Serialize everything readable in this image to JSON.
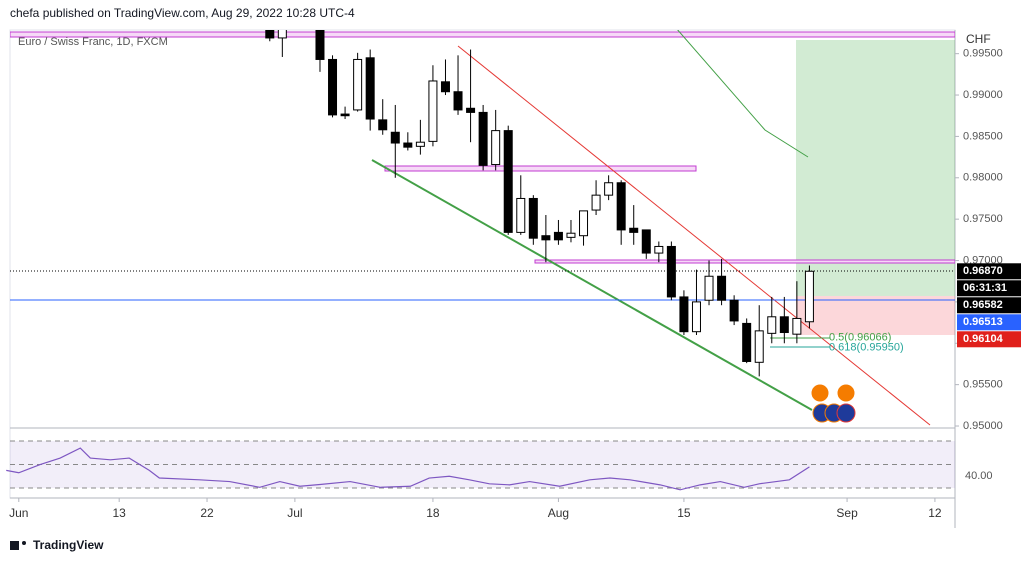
{
  "header": {
    "text": "chefa published on TradingView.com, Aug 29, 2022 10:28 UTC-4"
  },
  "footer": {
    "logo": "TradingView"
  },
  "chart_data": {
    "type": "candlestick",
    "title": "Euro / Swiss Franc, 1D, FXCM",
    "currency": "CHF",
    "xlim": [
      -20.7,
      54.6
    ],
    "xticks": [
      {
        "value": -20,
        "label": "Jun"
      },
      {
        "value": -12,
        "label": "13"
      },
      {
        "value": -5,
        "label": "22"
      },
      {
        "value": 2,
        "label": "Jul"
      },
      {
        "value": 13,
        "label": "18"
      },
      {
        "value": 23,
        "label": "Aug"
      },
      {
        "value": 33,
        "label": "15"
      },
      {
        "value": 46,
        "label": "Sep"
      },
      {
        "value": 53,
        "label": "12"
      }
    ],
    "ylim": [
      0.94976,
      0.99786
    ],
    "yticks": [
      {
        "value": 0.95,
        "label": "0.95000"
      },
      {
        "value": 0.955,
        "label": "0.95500"
      },
      {
        "value": 0.96,
        "label": "0.96000"
      },
      {
        "value": 0.965,
        "label": "0.96500"
      },
      {
        "value": 0.97,
        "label": "0.97000"
      },
      {
        "value": 0.975,
        "label": "0.97500"
      },
      {
        "value": 0.98,
        "label": "0.98000"
      },
      {
        "value": 0.985,
        "label": "0.98500"
      },
      {
        "value": 0.99,
        "label": "0.99000"
      },
      {
        "value": 0.995,
        "label": "0.99500"
      }
    ],
    "up_color": "#ffffff",
    "down_color": "#000000",
    "open": [
      0.9985,
      0.9969,
      0.999,
      1.0,
      0.9983,
      0.9943,
      0.9877,
      0.9882,
      0.9945,
      0.987,
      0.9855,
      0.9842,
      0.9838,
      0.9844,
      0.9916,
      0.9904,
      0.9884,
      0.9879,
      0.9816,
      0.9857,
      0.9734,
      0.9775,
      0.973,
      0.9734,
      0.9728,
      0.973,
      0.9761,
      0.9779,
      0.9794,
      0.9739,
      0.9737,
      0.9709,
      0.9717,
      0.9656,
      0.9614,
      0.9652,
      0.9681,
      0.9652,
      0.9624,
      0.9577,
      0.9612,
      0.9632,
      0.9611,
      0.9626
    ],
    "high": [
      0.999,
      0.999,
      1.001,
      1.001,
      0.999,
      0.9948,
      0.9886,
      0.9951,
      0.9955,
      0.9895,
      0.9888,
      0.9855,
      0.987,
      0.9936,
      0.9943,
      0.9948,
      0.9955,
      0.9888,
      0.9882,
      0.9863,
      0.9803,
      0.9779,
      0.9755,
      0.9749,
      0.9749,
      0.976,
      0.9797,
      0.9803,
      0.9797,
      0.9767,
      0.9737,
      0.9723,
      0.9723,
      0.9664,
      0.9689,
      0.97,
      0.9702,
      0.9658,
      0.963,
      0.9646,
      0.9656,
      0.9656,
      0.9675,
      0.9694
    ],
    "low": [
      0.9965,
      0.9946,
      0.9982,
      0.998,
      0.9928,
      0.9873,
      0.9871,
      0.988,
      0.9857,
      0.9852,
      0.98,
      0.9833,
      0.9828,
      0.9838,
      0.99,
      0.9876,
      0.9843,
      0.9809,
      0.9809,
      0.9731,
      0.9731,
      0.9719,
      0.9698,
      0.9719,
      0.9722,
      0.9718,
      0.9755,
      0.9773,
      0.9719,
      0.9719,
      0.9702,
      0.9698,
      0.9652,
      0.961,
      0.961,
      0.9646,
      0.9646,
      0.9622,
      0.9576,
      0.956,
      0.96,
      0.96,
      0.96,
      0.9618
    ],
    "close": [
      0.9969,
      0.9981,
      1.0,
      0.999,
      0.9943,
      0.9876,
      0.9875,
      0.9943,
      0.9871,
      0.9858,
      0.9842,
      0.9837,
      0.9843,
      0.9917,
      0.9904,
      0.9882,
      0.9879,
      0.9815,
      0.9857,
      0.9734,
      0.9775,
      0.9727,
      0.9725,
      0.9725,
      0.9733,
      0.976,
      0.9779,
      0.9794,
      0.9737,
      0.9734,
      0.9709,
      0.9717,
      0.9656,
      0.9614,
      0.965,
      0.9681,
      0.9652,
      0.9627,
      0.9578,
      0.9615,
      0.9632,
      0.9613,
      0.963,
      0.9687
    ],
    "price_tags": [
      {
        "value": 0.9687,
        "label": "0.96870",
        "color": "#000000"
      },
      {
        "value": 0.96582,
        "label": "0.96582",
        "color": "#000000"
      },
      {
        "value": 0.96513,
        "label": "0.96513",
        "color": "#2962ff"
      },
      {
        "value": 0.96104,
        "label": "0.96104",
        "color": "#e0201b"
      }
    ],
    "countdown": "06:31:31",
    "annotations": [
      {
        "value": 0.96066,
        "label": "0.5(0.96066)"
      },
      {
        "value": 0.9595,
        "label": "0.618(0.95950)"
      }
    ],
    "rsi": {
      "x": [
        -21,
        -20,
        -18.3,
        -16.7,
        -15.1,
        -14.3,
        -12.7,
        -11.2,
        -9.6,
        -8.8,
        -5.6,
        -3.2,
        -0.8,
        0.8,
        2.4,
        4,
        6.4,
        8.8,
        11.2,
        12.7,
        14.3,
        15.9,
        17.5,
        19.1,
        20.7,
        23.1,
        25.5,
        27.1,
        28.7,
        31.1,
        32.7,
        34.3,
        35.9,
        37.8,
        39,
        41.4,
        43
      ],
      "values": [
        45,
        43,
        50,
        55.5,
        64,
        55.5,
        54,
        55.5,
        45,
        38.5,
        37,
        35.5,
        30.6,
        35.5,
        31.5,
        33,
        35.5,
        30.6,
        31.5,
        38.5,
        40,
        37,
        33.6,
        32.7,
        35.5,
        31.5,
        37,
        38.5,
        37,
        32.7,
        28.5,
        32.7,
        35.5,
        30.6,
        33.6,
        37,
        48
      ],
      "color": "#7e57c2",
      "ylim": [
        21.5,
        79.4
      ],
      "yticks": [
        {
          "value": 40,
          "label": "40.00"
        }
      ],
      "bands": [
        70,
        50,
        30
      ]
    }
  }
}
